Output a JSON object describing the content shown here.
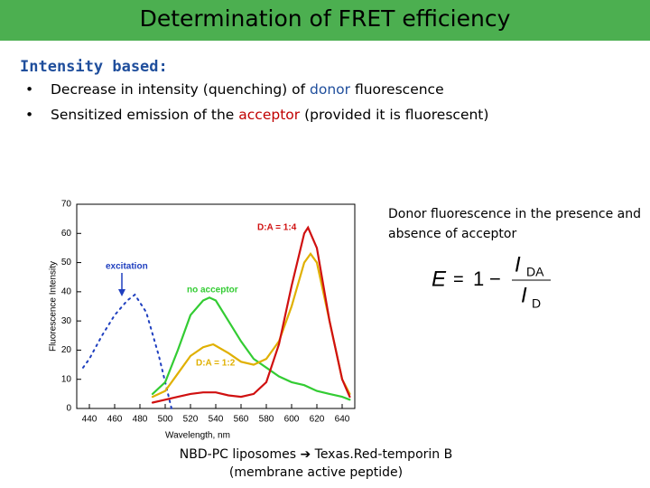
{
  "title": "Determination of FRET efficiency",
  "heading": "Intensity based:",
  "bullets": [
    [
      "Decrease in intensity (quenching) of ",
      "donor",
      " fluorescence"
    ],
    [
      "Sensitized emission of the ",
      "acceptor",
      " (provided it is fluorescent)"
    ]
  ],
  "side_note": "Donor fluorescence in the presence and absence of acceptor",
  "formula": {
    "lhs": "E",
    "eq": "=",
    "one": "1",
    "minus": "−",
    "num": "I",
    "num_sub": "DA",
    "den": "I",
    "den_sub": "D"
  },
  "caption": {
    "left": "NBD-PC liposomes",
    "right": "Texas.Red-temporin B",
    "line2": "(membrane active peptide)"
  },
  "chart_data": {
    "type": "line",
    "xlabel": "Wavelength, nm",
    "ylabel": "Fluorescence Intensity",
    "xlim": [
      430,
      650
    ],
    "xticks": [
      440,
      460,
      480,
      500,
      520,
      540,
      560,
      580,
      600,
      620,
      640
    ],
    "ylim": [
      0,
      70
    ],
    "yticks": [
      0,
      10,
      20,
      30,
      40,
      50,
      60,
      70
    ],
    "series": [
      {
        "name": "excitation",
        "color": "#1f3fbf",
        "dashed": true,
        "x": [
          435,
          440,
          450,
          460,
          470,
          476,
          485,
          495,
          505
        ],
        "values": [
          14,
          17,
          25,
          32,
          37,
          39,
          33,
          18,
          0
        ]
      },
      {
        "name": "no acceptor",
        "color": "#33cc33",
        "x": [
          490,
          500,
          510,
          520,
          530,
          535,
          540,
          550,
          560,
          570,
          580,
          590,
          600,
          610,
          620,
          630,
          640,
          646
        ],
        "values": [
          5,
          9,
          20,
          32,
          37,
          38,
          37,
          30,
          23,
          17,
          14,
          11,
          9,
          8,
          6,
          5,
          4,
          3
        ]
      },
      {
        "name": "D:A = 1:2",
        "color": "#e0b000",
        "x": [
          490,
          500,
          510,
          520,
          530,
          538,
          550,
          560,
          570,
          580,
          590,
          600,
          610,
          615,
          620,
          630,
          640,
          646
        ],
        "values": [
          4,
          6,
          12,
          18,
          21,
          22,
          19,
          16,
          15,
          17,
          23,
          35,
          50,
          53,
          50,
          30,
          10,
          5
        ]
      },
      {
        "name": "D:A = 1:4",
        "color": "#d01010",
        "x": [
          490,
          500,
          510,
          520,
          530,
          540,
          550,
          560,
          570,
          580,
          590,
          600,
          610,
          613,
          620,
          630,
          640,
          646
        ],
        "values": [
          2,
          3,
          4,
          5,
          5.5,
          5.5,
          4.5,
          4,
          5,
          9,
          22,
          42,
          60,
          62,
          55,
          30,
          10,
          4
        ]
      }
    ]
  }
}
